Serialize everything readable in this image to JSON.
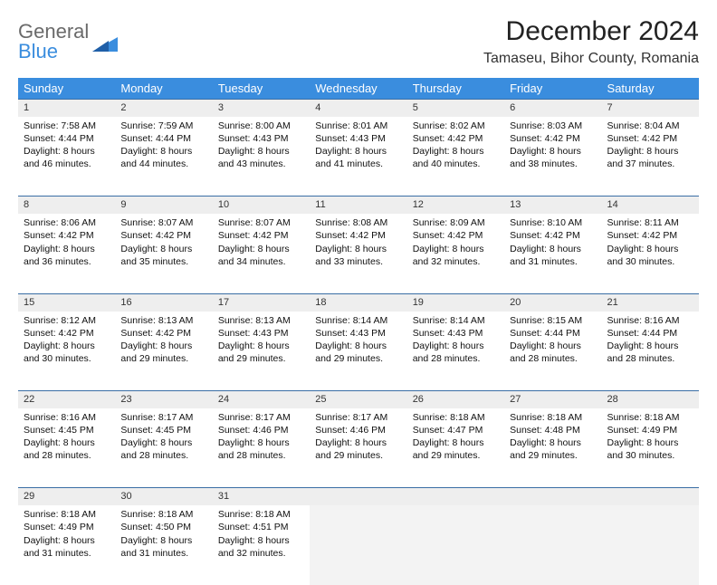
{
  "logo": {
    "general": "General",
    "blue": "Blue"
  },
  "title": "December 2024",
  "location": "Tamaseu, Bihor County, Romania",
  "colors": {
    "header_bg": "#3a8dde",
    "header_text": "#ffffff",
    "rule": "#3a6ea5",
    "daynum_bg": "#eeeeee",
    "empty_bg": "#f3f3f3"
  },
  "weekdays": [
    "Sunday",
    "Monday",
    "Tuesday",
    "Wednesday",
    "Thursday",
    "Friday",
    "Saturday"
  ],
  "weeks": [
    [
      {
        "n": "1",
        "sr": "7:58 AM",
        "ss": "4:44 PM",
        "dl": "8 hours and 46 minutes."
      },
      {
        "n": "2",
        "sr": "7:59 AM",
        "ss": "4:44 PM",
        "dl": "8 hours and 44 minutes."
      },
      {
        "n": "3",
        "sr": "8:00 AM",
        "ss": "4:43 PM",
        "dl": "8 hours and 43 minutes."
      },
      {
        "n": "4",
        "sr": "8:01 AM",
        "ss": "4:43 PM",
        "dl": "8 hours and 41 minutes."
      },
      {
        "n": "5",
        "sr": "8:02 AM",
        "ss": "4:42 PM",
        "dl": "8 hours and 40 minutes."
      },
      {
        "n": "6",
        "sr": "8:03 AM",
        "ss": "4:42 PM",
        "dl": "8 hours and 38 minutes."
      },
      {
        "n": "7",
        "sr": "8:04 AM",
        "ss": "4:42 PM",
        "dl": "8 hours and 37 minutes."
      }
    ],
    [
      {
        "n": "8",
        "sr": "8:06 AM",
        "ss": "4:42 PM",
        "dl": "8 hours and 36 minutes."
      },
      {
        "n": "9",
        "sr": "8:07 AM",
        "ss": "4:42 PM",
        "dl": "8 hours and 35 minutes."
      },
      {
        "n": "10",
        "sr": "8:07 AM",
        "ss": "4:42 PM",
        "dl": "8 hours and 34 minutes."
      },
      {
        "n": "11",
        "sr": "8:08 AM",
        "ss": "4:42 PM",
        "dl": "8 hours and 33 minutes."
      },
      {
        "n": "12",
        "sr": "8:09 AM",
        "ss": "4:42 PM",
        "dl": "8 hours and 32 minutes."
      },
      {
        "n": "13",
        "sr": "8:10 AM",
        "ss": "4:42 PM",
        "dl": "8 hours and 31 minutes."
      },
      {
        "n": "14",
        "sr": "8:11 AM",
        "ss": "4:42 PM",
        "dl": "8 hours and 30 minutes."
      }
    ],
    [
      {
        "n": "15",
        "sr": "8:12 AM",
        "ss": "4:42 PM",
        "dl": "8 hours and 30 minutes."
      },
      {
        "n": "16",
        "sr": "8:13 AM",
        "ss": "4:42 PM",
        "dl": "8 hours and 29 minutes."
      },
      {
        "n": "17",
        "sr": "8:13 AM",
        "ss": "4:43 PM",
        "dl": "8 hours and 29 minutes."
      },
      {
        "n": "18",
        "sr": "8:14 AM",
        "ss": "4:43 PM",
        "dl": "8 hours and 29 minutes."
      },
      {
        "n": "19",
        "sr": "8:14 AM",
        "ss": "4:43 PM",
        "dl": "8 hours and 28 minutes."
      },
      {
        "n": "20",
        "sr": "8:15 AM",
        "ss": "4:44 PM",
        "dl": "8 hours and 28 minutes."
      },
      {
        "n": "21",
        "sr": "8:16 AM",
        "ss": "4:44 PM",
        "dl": "8 hours and 28 minutes."
      }
    ],
    [
      {
        "n": "22",
        "sr": "8:16 AM",
        "ss": "4:45 PM",
        "dl": "8 hours and 28 minutes."
      },
      {
        "n": "23",
        "sr": "8:17 AM",
        "ss": "4:45 PM",
        "dl": "8 hours and 28 minutes."
      },
      {
        "n": "24",
        "sr": "8:17 AM",
        "ss": "4:46 PM",
        "dl": "8 hours and 28 minutes."
      },
      {
        "n": "25",
        "sr": "8:17 AM",
        "ss": "4:46 PM",
        "dl": "8 hours and 29 minutes."
      },
      {
        "n": "26",
        "sr": "8:18 AM",
        "ss": "4:47 PM",
        "dl": "8 hours and 29 minutes."
      },
      {
        "n": "27",
        "sr": "8:18 AM",
        "ss": "4:48 PM",
        "dl": "8 hours and 29 minutes."
      },
      {
        "n": "28",
        "sr": "8:18 AM",
        "ss": "4:49 PM",
        "dl": "8 hours and 30 minutes."
      }
    ],
    [
      {
        "n": "29",
        "sr": "8:18 AM",
        "ss": "4:49 PM",
        "dl": "8 hours and 31 minutes."
      },
      {
        "n": "30",
        "sr": "8:18 AM",
        "ss": "4:50 PM",
        "dl": "8 hours and 31 minutes."
      },
      {
        "n": "31",
        "sr": "8:18 AM",
        "ss": "4:51 PM",
        "dl": "8 hours and 32 minutes."
      },
      null,
      null,
      null,
      null
    ]
  ],
  "labels": {
    "sunrise": "Sunrise: ",
    "sunset": "Sunset: ",
    "daylight": "Daylight: "
  }
}
